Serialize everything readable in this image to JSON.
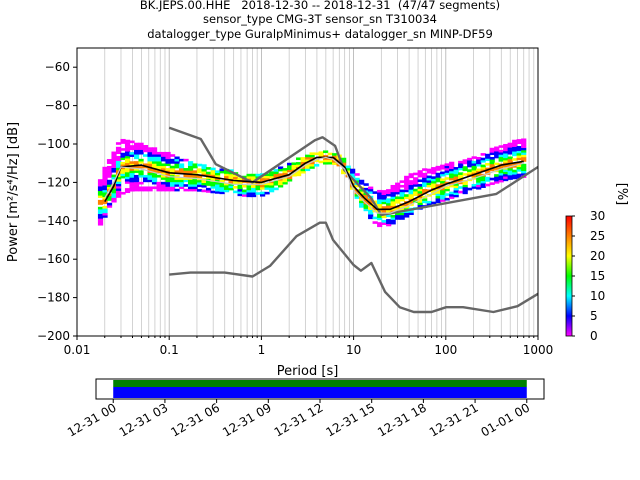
{
  "title_lines": [
    "BK.JEPS.00.HHE   2018-12-30 -- 2018-12-31  (47/47 segments)",
    "sensor_type CMG-3T sensor_sn T310034",
    "datalogger_type GuralpMinimus+ datalogger_sn MINP-DF59"
  ],
  "chart_data": [
    {
      "type": "heatmap",
      "subtype": "probabilistic power spectral density",
      "xlabel": "Period [s]",
      "ylabel": "Power [m²/s⁴/Hz] [dB]",
      "x_scale": "log",
      "xlim": [
        0.01,
        1000
      ],
      "ylim": [
        -200,
        -50
      ],
      "x_ticks": [
        0.01,
        0.1,
        1,
        10,
        100,
        1000
      ],
      "x_tick_labels": [
        "0.01",
        "0.1",
        "1",
        "10",
        "100",
        "1000"
      ],
      "y_ticks": [
        -200,
        -180,
        -160,
        -140,
        -120,
        -100,
        -80,
        -60
      ],
      "y_tick_labels": [
        "−200",
        "−180",
        "−160",
        "−140",
        "−120",
        "−100",
        "−80",
        "−60"
      ],
      "grid": "x-major-and-minor",
      "colorbar": {
        "label": "[%]",
        "range": [
          0,
          30
        ],
        "ticks": [
          0,
          5,
          10,
          15,
          20,
          25,
          30
        ],
        "tick_labels": [
          "0",
          "5",
          "10",
          "15",
          "20",
          "25",
          "30"
        ],
        "colors": [
          "#ffffff",
          "#ff00ff",
          "#0000ff",
          "#00ffff",
          "#00ff00",
          "#ffff00",
          "#ff8000",
          "#ff0000"
        ]
      },
      "series": [
        {
          "role": "noise-model-high",
          "color": "#666666",
          "x": [
            0.1,
            0.22,
            0.32,
            0.8,
            3.8,
            4.6,
            6.3,
            7.9,
            15.4,
            20,
            354,
            1000
          ],
          "y": [
            -91.5,
            -97.4,
            -110.5,
            -120,
            -98,
            -96.5,
            -101,
            -113.5,
            -128,
            -137,
            -126,
            -112
          ]
        },
        {
          "role": "noise-model-low",
          "color": "#666666",
          "x": [
            0.1,
            0.17,
            0.4,
            0.8,
            1.24,
            2.4,
            4.3,
            5,
            6,
            10,
            12,
            15.6,
            21.9,
            31.6,
            45,
            70,
            101,
            154,
            328,
            600,
            1000
          ],
          "y": [
            -168,
            -167,
            -167,
            -169,
            -163.5,
            -148,
            -141,
            -141,
            -150,
            -163,
            -166,
            -162,
            -177,
            -185,
            -187.5,
            -187.5,
            -185,
            -185,
            -187.5,
            -184.5,
            -178
          ]
        },
        {
          "role": "mean",
          "color": "#000000",
          "x": [
            0.02,
            0.025,
            0.03,
            0.05,
            0.1,
            0.2,
            0.5,
            1,
            2,
            3,
            4,
            5,
            6,
            8,
            10,
            13,
            18,
            25,
            40,
            70,
            100,
            200,
            400,
            700
          ],
          "y": [
            -130,
            -122,
            -112,
            -111,
            -115,
            -116,
            -119,
            -120,
            -116,
            -110,
            -107,
            -107,
            -107,
            -112,
            -122,
            -128,
            -134,
            -134,
            -130,
            -124,
            -121,
            -116,
            -111,
            -109
          ]
        },
        {
          "role": "mode",
          "color": "#c8c8c8",
          "x": [
            0.02,
            0.025,
            0.03,
            0.05,
            0.1,
            0.2,
            0.5,
            1,
            2,
            3,
            4,
            5,
            6,
            8,
            10,
            13,
            18,
            25,
            40,
            70,
            100,
            200,
            400,
            700
          ],
          "y": [
            -128,
            -120,
            -112,
            -113,
            -117,
            -118,
            -121,
            -121,
            -117,
            -111,
            -108,
            -107,
            -108,
            -113,
            -124,
            -130,
            -136,
            -136,
            -132,
            -126,
            -122,
            -118,
            -113,
            -110
          ]
        }
      ],
      "spread": {
        "x": [
          0.018,
          0.02,
          0.025,
          0.03,
          0.04,
          0.05,
          0.07,
          0.1,
          0.15,
          0.2,
          0.3,
          0.5,
          0.7,
          1,
          1.5,
          2,
          3,
          4,
          5,
          6,
          7,
          8,
          10,
          12,
          15,
          18,
          20,
          25,
          30,
          40,
          50,
          70,
          100,
          150,
          200,
          300,
          500,
          700
        ],
        "upper": [
          -118,
          -112,
          -104,
          -97,
          -98,
          -100,
          -102,
          -105,
          -108,
          -110,
          -112,
          -114,
          -115,
          -116,
          -113,
          -110,
          -106,
          -104,
          -104,
          -104,
          -105,
          -108,
          -113,
          -118,
          -122,
          -124,
          -124,
          -123,
          -120,
          -116,
          -114,
          -112,
          -110,
          -108,
          -106,
          -103,
          -99,
          -97
        ],
        "lower": [
          -143,
          -138,
          -130,
          -126,
          -124,
          -124,
          -124,
          -124,
          -124,
          -124,
          -125,
          -126,
          -127,
          -127,
          -123,
          -119,
          -114,
          -111,
          -110,
          -110,
          -111,
          -116,
          -124,
          -132,
          -138,
          -142,
          -143,
          -142,
          -140,
          -137,
          -134,
          -131,
          -129,
          -126,
          -124,
          -121,
          -118,
          -117
        ]
      }
    },
    {
      "type": "bar",
      "subtype": "data-coverage timeline",
      "xlim": [
        "2018-12-30 23:00",
        "2019-01-01 01:00"
      ],
      "x_tick_labels": [
        "12-31 00",
        "12-31 03",
        "12-31 06",
        "12-31 09",
        "12-31 12",
        "12-31 15",
        "12-31 18",
        "12-31 21",
        "01-01 00"
      ],
      "bars": [
        {
          "role": "data",
          "color": "#008000",
          "start": "2018-12-31 00:00",
          "end": "2019-01-01 00:00"
        },
        {
          "role": "psd",
          "color": "#0000ff",
          "start": "2018-12-31 00:00",
          "end": "2019-01-01 00:00"
        }
      ]
    }
  ]
}
